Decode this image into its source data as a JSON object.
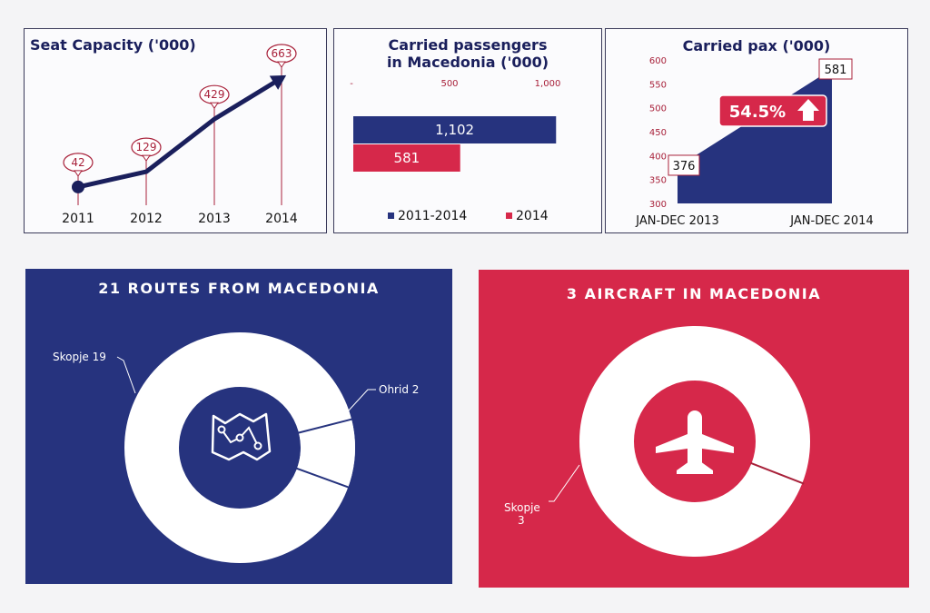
{
  "colors": {
    "navy": "#26337e",
    "red": "#d6284a",
    "label": "#a8213a",
    "dark": "#1a1f5c"
  },
  "chart_data": [
    {
      "type": "line",
      "title": "Seat Capacity ('000)",
      "categories": [
        "2011",
        "2012",
        "2013",
        "2014"
      ],
      "values": [
        42,
        129,
        429,
        663
      ]
    },
    {
      "type": "bar",
      "orientation": "horizontal",
      "title_line1": "Carried passengers",
      "title_line2": "in Macedonia ('000)",
      "x_ticks": [
        "-",
        "500",
        "1,000"
      ],
      "xlim": [
        0,
        1150
      ],
      "series": [
        {
          "name": "2011-2014",
          "value": 1102,
          "label": "1,102",
          "color": "#26337e"
        },
        {
          "name": "2014",
          "value": 581,
          "label": "581",
          "color": "#d6284a"
        }
      ]
    },
    {
      "type": "area",
      "title": "Carried pax ('000)",
      "categories": [
        "JAN-DEC 2013",
        "JAN-DEC 2014"
      ],
      "values": [
        376,
        581
      ],
      "value_labels": [
        "376",
        "581"
      ],
      "y_ticks": [
        "600",
        "550",
        "500",
        "450",
        "400",
        "350",
        "300"
      ],
      "ylim": [
        300,
        600
      ],
      "growth_label": "54.5%"
    },
    {
      "type": "pie",
      "title": "21 ROUTES FROM MACEDONIA",
      "slices": [
        {
          "label": "Skopje 19",
          "value": 19
        },
        {
          "label": "Ohrid 2",
          "value": 2
        }
      ]
    },
    {
      "type": "pie",
      "title": "3 AIRCRAFT IN MACEDONIA",
      "slices": [
        {
          "label_line1": "Skopje",
          "label_line2": "3",
          "value": 3
        }
      ]
    }
  ]
}
